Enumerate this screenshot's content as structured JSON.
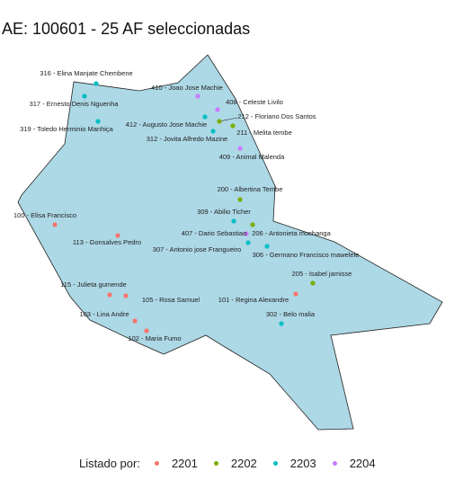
{
  "title": "AE: 100601 - 25  AF seleccionadas",
  "legend": {
    "title": "Listado por:",
    "items": [
      {
        "label": "2201",
        "color": "#f8766d"
      },
      {
        "label": "2202",
        "color": "#7cae00"
      },
      {
        "label": "2203",
        "color": "#00bfc4"
      },
      {
        "label": "2204",
        "color": "#c77cff"
      }
    ]
  },
  "map_style": {
    "fill": "#add8e6",
    "stroke": "#222222"
  },
  "points": [
    {
      "label": "316 - Elina Manjate Chembene",
      "group": "2203"
    },
    {
      "label": "317 - Ernesto Denis Nguenha",
      "group": "2203"
    },
    {
      "label": "319 - Toledo  Herminio  Manhiça",
      "group": "2203"
    },
    {
      "label": "410 - Joao Jose Machie",
      "group": "2204"
    },
    {
      "label": "408 - Celeste Livilo",
      "group": "2204"
    },
    {
      "label": "212 - Floriano Dos Santos",
      "group": "2202"
    },
    {
      "label": "412 - Augusto Jose Machie",
      "group": "2203"
    },
    {
      "label": "211 - Melita tembe",
      "group": "2202"
    },
    {
      "label": "312 - Jovita Alfredo  Mazine",
      "group": "2203"
    },
    {
      "label": "409 - Animal Malenda",
      "group": "2204"
    },
    {
      "label": "200 - Albertina Tembe",
      "group": "2202"
    },
    {
      "label": "100 - Elisa Francisco",
      "group": "2201"
    },
    {
      "label": "309 - Abilio  Ticher",
      "group": "2203"
    },
    {
      "label": "113 - Gonsalves Pedro",
      "group": "2201"
    },
    {
      "label": "407 - Dario Sebastiao",
      "group": "2204"
    },
    {
      "label": "206 - Antonieta muchanga",
      "group": "2202"
    },
    {
      "label": "307 - Antonio  jose Frangueiro",
      "group": "2203"
    },
    {
      "label": "306 - Germano  Francisco mawelele",
      "group": "2203"
    },
    {
      "label": "205 - Isabel jamisse",
      "group": "2202"
    },
    {
      "label": "115 - Julieta gumende",
      "group": "2201"
    },
    {
      "label": "105 - Rosa Samuel",
      "group": "2201"
    },
    {
      "label": "101 - Regina Alexandre",
      "group": "2201"
    },
    {
      "label": "103 - Lina Andre",
      "group": "2201"
    },
    {
      "label": "302 - Belo malia",
      "group": "2203"
    },
    {
      "label": "102 - Maria Fumo",
      "group": "2201"
    }
  ]
}
